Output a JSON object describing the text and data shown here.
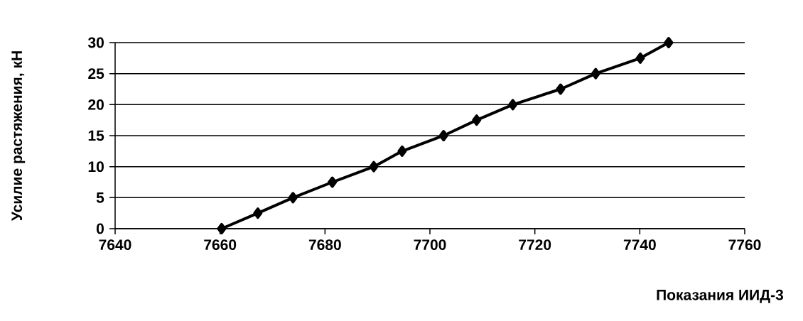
{
  "chart_data": {
    "type": "line",
    "xlabel": "Показания  ИИД-3",
    "ylabel": "Усилие растяжения, кН",
    "x": [
      7660.3,
      7667.2,
      7673.9,
      7681.4,
      7689.3,
      7694.7,
      7702.6,
      7708.9,
      7715.8,
      7724.9,
      7731.6,
      7740.1,
      7745.5
    ],
    "series": [
      {
        "color": "#000000",
        "values": [
          0,
          2.5,
          5,
          7.5,
          10,
          12.5,
          15,
          17.5,
          20,
          22.5,
          25,
          27.5,
          30
        ]
      }
    ],
    "xlim": [
      7640,
      7760
    ],
    "xticks": [
      7640,
      7660,
      7680,
      7700,
      7720,
      7740,
      7760
    ],
    "ylim": [
      0,
      30
    ],
    "yticks": [
      0,
      5,
      10,
      15,
      20,
      25,
      30
    ],
    "grid": "y",
    "marker": "diamond",
    "line_style": "solid"
  }
}
